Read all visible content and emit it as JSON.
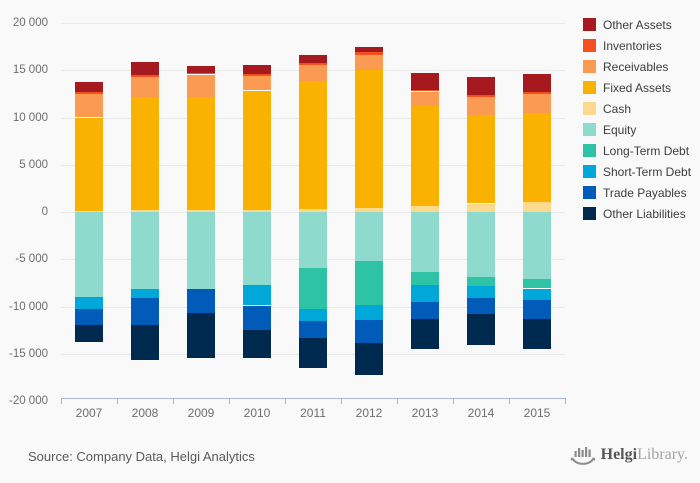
{
  "chart_data": {
    "type": "bar",
    "stacked": true,
    "grid": true,
    "legend_position": "right",
    "categories": [
      "2007",
      "2008",
      "2009",
      "2010",
      "2011",
      "2012",
      "2013",
      "2014",
      "2015"
    ],
    "ylim": [
      -20000,
      20000
    ],
    "ytick_step": 5000,
    "ytick_labels": [
      "20 000",
      "15 000",
      "10 000",
      "5 000",
      "0",
      "-5 000",
      "-10 000",
      "-15 000",
      "-20 000"
    ],
    "series": [
      {
        "name": "Cash",
        "color": "#fbd98d",
        "values": [
          100,
          250,
          250,
          250,
          300,
          450,
          600,
          900,
          1050
        ]
      },
      {
        "name": "Fixed Assets",
        "color": "#f9b200",
        "values": [
          9900,
          11950,
          11900,
          12600,
          13550,
          14550,
          10600,
          9400,
          9400
        ]
      },
      {
        "name": "Receivables",
        "color": "#fb9a51",
        "values": [
          2450,
          2050,
          2400,
          1550,
          1750,
          1650,
          1550,
          1850,
          2050
        ]
      },
      {
        "name": "Inventories",
        "color": "#f2511f",
        "values": [
          250,
          200,
          200,
          180,
          180,
          240,
          200,
          240,
          250
        ]
      },
      {
        "name": "Other Assets",
        "color": "#a6191f",
        "values": [
          1050,
          1450,
          750,
          950,
          850,
          550,
          1750,
          1850,
          1900
        ]
      },
      {
        "name": "Equity",
        "color": "#8edacc",
        "values": [
          -8950,
          -8150,
          -8100,
          -7750,
          -5900,
          -5200,
          -6300,
          -6850,
          -7050
        ]
      },
      {
        "name": "Long-Term Debt",
        "color": "#2dc3a4",
        "values": [
          0,
          0,
          0,
          0,
          -4350,
          -4600,
          -1400,
          -1000,
          -1050
        ]
      },
      {
        "name": "Short-Term Debt",
        "color": "#00a8d9",
        "values": [
          -1300,
          -950,
          0,
          -2150,
          -1250,
          -1600,
          -1850,
          -1250,
          -1200
        ]
      },
      {
        "name": "Trade Payables",
        "color": "#005cb8",
        "values": [
          -1750,
          -2800,
          -2600,
          -2600,
          -1850,
          -2500,
          -1750,
          -1650,
          -2050
        ]
      },
      {
        "name": "Other Liabilities",
        "color": "#00294f",
        "values": [
          -1750,
          -3800,
          -4800,
          -3000,
          -3200,
          -3350,
          -3150,
          -3350,
          -3200
        ]
      }
    ],
    "legend_order": [
      "Other Assets",
      "Inventories",
      "Receivables",
      "Fixed Assets",
      "Cash",
      "Equity",
      "Long-Term Debt",
      "Short-Term Debt",
      "Trade Payables",
      "Other Liabilities"
    ]
  },
  "footer": {
    "source": "Source: Company Data, Helgi Analytics",
    "logo_primary": "Helgi",
    "logo_secondary": "Library."
  }
}
